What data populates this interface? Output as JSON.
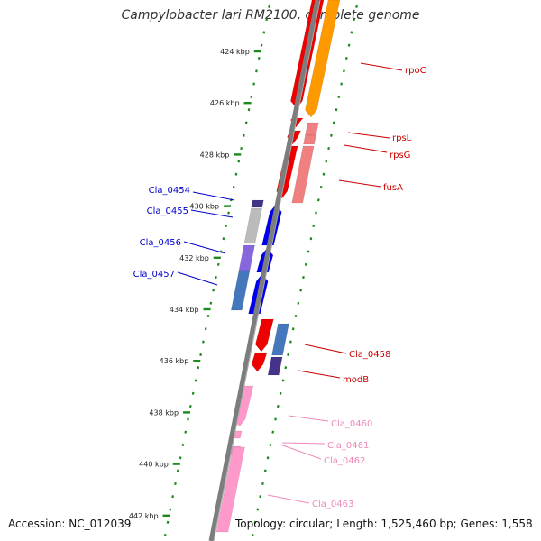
{
  "title": "Campylobacter lari RM2100, complete genome",
  "footer": {
    "accession": "Accession: NC_012039",
    "topology": "Topology: circular; Length: 1,525,460 bp; Genes: 1,558"
  },
  "colors": {
    "backbone": "#7d7d7d",
    "tick": "#1a8a1a",
    "red": "#ee0000",
    "orange": "#ff9900",
    "salmon": "#f08080",
    "blue": "#0000ee",
    "lavender": "#8866dd",
    "navy": "#443388",
    "steel": "#4477bb",
    "grey": "#bbbbbb",
    "pink": "#ff99cc"
  },
  "ruler": [
    "424 kbp",
    "426 kbp",
    "428 kbp",
    "430 kbp",
    "432 kbp",
    "434 kbp",
    "436 kbp",
    "438 kbp",
    "440 kbp",
    "442 kbp"
  ],
  "labels": [
    {
      "id": "rpoC",
      "text": "rpoC",
      "color": "#cc0000"
    },
    {
      "id": "rpsL",
      "text": "rpsL",
      "color": "#cc0000"
    },
    {
      "id": "rpsG",
      "text": "rpsG",
      "color": "#cc0000"
    },
    {
      "id": "fusA",
      "text": "fusA",
      "color": "#cc0000"
    },
    {
      "id": "Cla_0454",
      "text": "Cla_0454",
      "color": "#0000cc"
    },
    {
      "id": "Cla_0455",
      "text": "Cla_0455",
      "color": "#0000cc"
    },
    {
      "id": "Cla_0456",
      "text": "Cla_0456",
      "color": "#0000cc"
    },
    {
      "id": "Cla_0457",
      "text": "Cla_0457",
      "color": "#0000cc"
    },
    {
      "id": "Cla_0458",
      "text": "Cla_0458",
      "color": "#cc0000"
    },
    {
      "id": "modB",
      "text": "modB",
      "color": "#cc0000"
    },
    {
      "id": "Cla_0460",
      "text": "Cla_0460",
      "color": "#ee88bb"
    },
    {
      "id": "Cla_0461",
      "text": "Cla_0461",
      "color": "#ee88bb"
    },
    {
      "id": "Cla_0462",
      "text": "Cla_0462",
      "color": "#ee88bb"
    },
    {
      "id": "Cla_0463",
      "text": "Cla_0463",
      "color": "#ee88bb"
    }
  ]
}
